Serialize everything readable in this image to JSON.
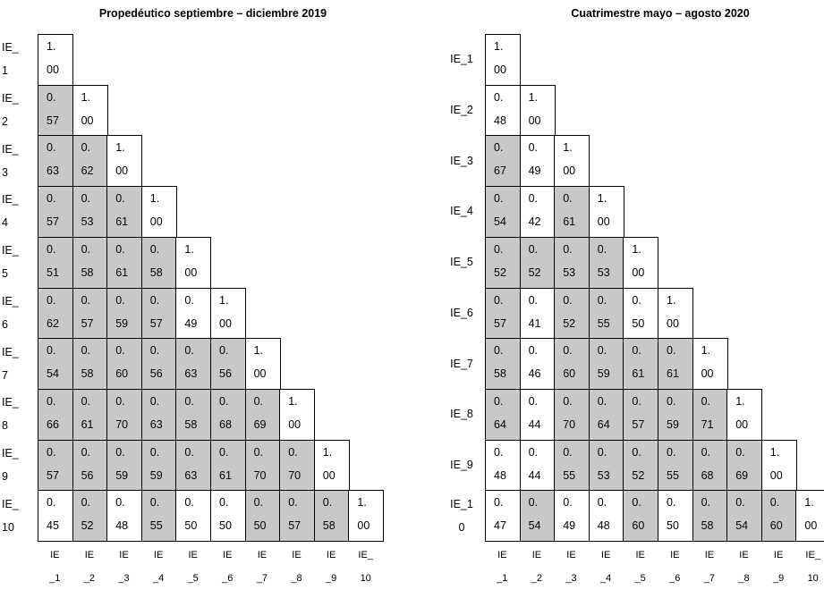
{
  "chart_data": [
    {
      "type": "table",
      "title": "Propedéutico septiembre – diciembre 2019",
      "variables": [
        "IE_1",
        "IE_2",
        "IE_3",
        "IE_4",
        "IE_5",
        "IE_6",
        "IE_7",
        "IE_8",
        "IE_9",
        "IE_10"
      ],
      "row_labels": [
        "IE_\n1",
        "IE_\n2",
        "IE_\n3",
        "IE_\n4",
        "IE_\n5",
        "IE_\n6",
        "IE_\n7",
        "IE_\n8",
        "IE_\n9",
        "IE_\n10"
      ],
      "col_labels": [
        "IE\n_1",
        "IE\n_2",
        "IE\n_3",
        "IE\n_4",
        "IE\n_5",
        "IE\n_6",
        "IE\n_7",
        "IE\n_8",
        "IE\n_9",
        "IE_\n10"
      ],
      "matrix": [
        [
          "1.\n00"
        ],
        [
          "0.\n57",
          "1.\n00"
        ],
        [
          "0.\n63",
          "0.\n62",
          "1.\n00"
        ],
        [
          "0.\n57",
          "0.\n53",
          "0.\n61",
          "1.\n00"
        ],
        [
          "0.\n51",
          "0.\n58",
          "0.\n61",
          "0.\n58",
          "1.\n00"
        ],
        [
          "0.\n62",
          "0.\n57",
          "0.\n59",
          "0.\n57",
          "0.\n49",
          "1.\n00"
        ],
        [
          "0.\n54",
          "0.\n58",
          "0.\n60",
          "0.\n56",
          "0.\n63",
          "0.\n56",
          "1.\n00"
        ],
        [
          "0.\n66",
          "0.\n61",
          "0.\n70",
          "0.\n63",
          "0.\n58",
          "0.\n68",
          "0.\n69",
          "1.\n00"
        ],
        [
          "0.\n57",
          "0.\n56",
          "0.\n59",
          "0.\n59",
          "0.\n63",
          "0.\n61",
          "0.\n70",
          "0.\n70",
          "1.\n00"
        ],
        [
          "0.\n45",
          "0.\n52",
          "0.\n48",
          "0.\n55",
          "0.\n50",
          "0.\n50",
          "0.\n50",
          "0.\n57",
          "0.\n58",
          "1.\n00"
        ]
      ],
      "shaded": [
        [
          false
        ],
        [
          true,
          false
        ],
        [
          true,
          true,
          false
        ],
        [
          true,
          true,
          true,
          false
        ],
        [
          true,
          true,
          true,
          true,
          false
        ],
        [
          true,
          true,
          true,
          true,
          false,
          false
        ],
        [
          true,
          true,
          true,
          true,
          true,
          true,
          false
        ],
        [
          true,
          true,
          true,
          true,
          true,
          true,
          true,
          false
        ],
        [
          true,
          true,
          true,
          true,
          true,
          true,
          true,
          true,
          false
        ],
        [
          false,
          true,
          false,
          true,
          false,
          false,
          true,
          true,
          true,
          false
        ]
      ]
    },
    {
      "type": "table",
      "title": "Cuatrimestre mayo – agosto 2020",
      "variables": [
        "IE_1",
        "IE_2",
        "IE_3",
        "IE_4",
        "IE_5",
        "IE_6",
        "IE_7",
        "IE_8",
        "IE_9",
        "IE_10"
      ],
      "row_labels": [
        "IE_1",
        "IE_2",
        "IE_3",
        "IE_4",
        "IE_5",
        "IE_6",
        "IE_7",
        "IE_8",
        "IE_9",
        "IE_1\n0"
      ],
      "col_labels": [
        "IE\n_1",
        "IE\n_2",
        "IE\n_3",
        "IE\n_4",
        "IE\n_5",
        "IE\n_6",
        "IE\n_7",
        "IE\n_8",
        "IE\n_9",
        "IE_\n10"
      ],
      "matrix": [
        [
          "1.\n00"
        ],
        [
          "0.\n48",
          "1.\n00"
        ],
        [
          "0.\n67",
          "0.\n49",
          "1.\n00"
        ],
        [
          "0.\n54",
          "0.\n42",
          "0.\n61",
          "1.\n00"
        ],
        [
          "0.\n52",
          "0.\n52",
          "0.\n53",
          "0.\n53",
          "1.\n00"
        ],
        [
          "0.\n57",
          "0.\n41",
          "0.\n52",
          "0.\n55",
          "0.\n50",
          "1.\n00"
        ],
        [
          "0.\n58",
          "0.\n46",
          "0.\n60",
          "0.\n59",
          "0.\n61",
          "0.\n61",
          "1.\n00"
        ],
        [
          "0.\n64",
          "0.\n44",
          "0.\n70",
          "0.\n64",
          "0.\n57",
          "0.\n59",
          "0.\n71",
          "1.\n00"
        ],
        [
          "0.\n48",
          "0.\n44",
          "0.\n55",
          "0.\n53",
          "0.\n52",
          "0.\n55",
          "0.\n68",
          "0.\n69",
          "1.\n00"
        ],
        [
          "0.\n47",
          "0.\n54",
          "0.\n49",
          "0.\n48",
          "0.\n60",
          "0.\n50",
          "0.\n58",
          "0.\n54",
          "0.\n60",
          "1.\n00"
        ]
      ],
      "shaded": [
        [
          false
        ],
        [
          false,
          false
        ],
        [
          true,
          false,
          false
        ],
        [
          true,
          false,
          true,
          false
        ],
        [
          true,
          true,
          true,
          true,
          false
        ],
        [
          true,
          false,
          true,
          true,
          false,
          false
        ],
        [
          true,
          false,
          true,
          true,
          true,
          true,
          false
        ],
        [
          true,
          false,
          true,
          true,
          true,
          true,
          true,
          false
        ],
        [
          false,
          false,
          true,
          true,
          true,
          true,
          true,
          true,
          false
        ],
        [
          false,
          true,
          false,
          false,
          true,
          false,
          true,
          true,
          true,
          false
        ]
      ]
    }
  ],
  "colors": {
    "shaded": "#c8c8c8",
    "plain": "#ffffff",
    "border": "#000000"
  }
}
